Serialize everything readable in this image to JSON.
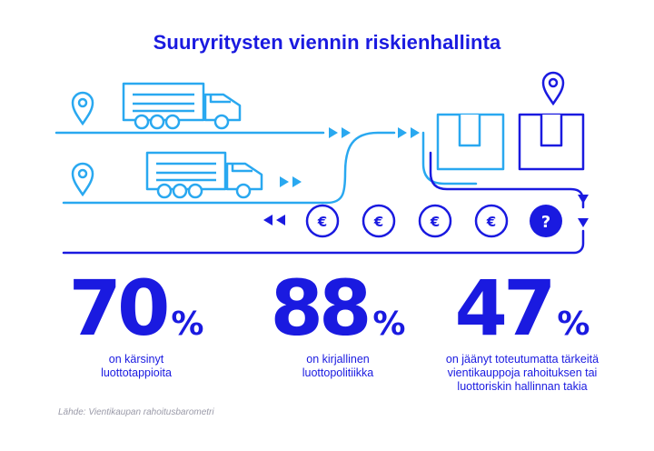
{
  "title": "Suuryritysten viennin riskienhallinta",
  "colors": {
    "blue": "#1a1ae0",
    "cyan": "#29a8f0",
    "white": "#ffffff"
  },
  "icons": [
    "location-pin-icon",
    "truck-icon",
    "package-box-icon",
    "euro-coin-icon",
    "question-coin-icon",
    "arrow-triangle-icon"
  ],
  "coins": {
    "euro_symbol": "€",
    "question_symbol": "?"
  },
  "stats": [
    {
      "value": "70",
      "unit": "%",
      "caption": "on kärsinyt\nluottotappioita"
    },
    {
      "value": "88",
      "unit": "%",
      "caption": "on kirjallinen\nluottopolitiikka"
    },
    {
      "value": "47",
      "unit": "%",
      "caption": "on jäänyt toteutumatta tärkeitä\nvientikauppoja rahoituksen tai\nluottoriskin hallinnan takia"
    }
  ],
  "source": "Lähde: Vientikaupan rahoitusbarometri"
}
